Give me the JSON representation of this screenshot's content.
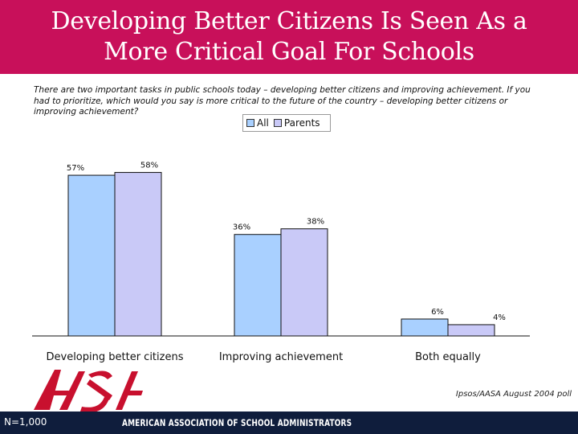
{
  "header": {
    "title": "Developing Better Citizens Is Seen As a\nMore Critical Goal For Schools"
  },
  "question": "There are two important tasks in public schools today – developing better citizens and improving achievement.  If you had to prioritize, which would you say is more critical to the future of the country – developing better citizens or improving achievement?",
  "chart_data": {
    "type": "bar",
    "categories": [
      "Developing better citizens",
      "Improving achievement",
      "Both equally"
    ],
    "series": [
      {
        "name": "All",
        "values": [
          57,
          36,
          6
        ],
        "labels": [
          "57%",
          "36%",
          "6%"
        ],
        "color": "#a9d0ff"
      },
      {
        "name": "Parents",
        "values": [
          58,
          38,
          4
        ],
        "labels": [
          "58%",
          "38%",
          "4%"
        ],
        "color": "#c9c9f7"
      }
    ],
    "ylim": [
      0,
      65
    ],
    "legend_position": "top",
    "grid": false
  },
  "colors": {
    "header_bg": "#c8105a",
    "footer_bg": "#0f1d3c",
    "logo_red": "#c8102e"
  },
  "footer": {
    "source": "Ipsos/AASA August 2004 poll",
    "n_label": "N=1,000",
    "org_name": "AMERICAN ASSOCIATION OF SCHOOL ADMINISTRATORS",
    "logo_icon": "aasa-logo-icon"
  }
}
